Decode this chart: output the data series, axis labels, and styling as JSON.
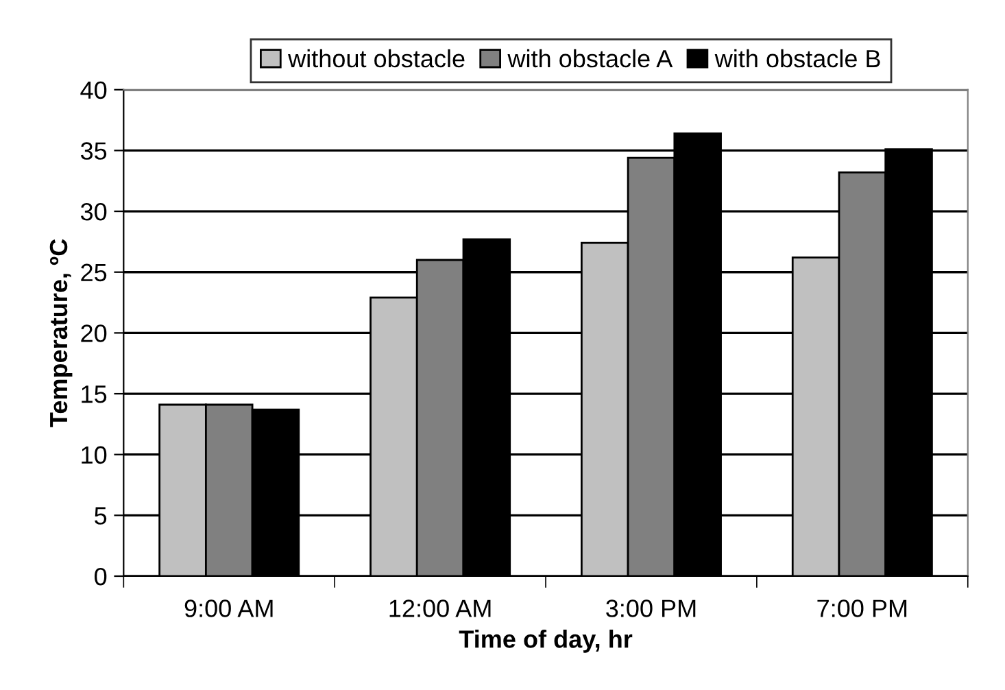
{
  "chart_data": {
    "type": "bar",
    "xlabel": "Time of day, hr",
    "ylabel": "Temperature, ºC",
    "categories": [
      "9:00 AM",
      "12:00 AM",
      "3:00 PM",
      "7:00 PM"
    ],
    "series": [
      {
        "name": "without obstacle",
        "color": "#c0c0c0",
        "values": [
          14.1,
          22.9,
          27.4,
          26.2
        ]
      },
      {
        "name": "with obstacle A",
        "color": "#808080",
        "values": [
          14.1,
          26.0,
          34.4,
          33.2
        ]
      },
      {
        "name": "with obstacle B",
        "color": "#000000",
        "values": [
          13.7,
          27.7,
          36.4,
          35.1
        ]
      }
    ],
    "ylim": [
      0,
      40
    ],
    "yticks": [
      0,
      5,
      10,
      15,
      20,
      25,
      30,
      35,
      40
    ],
    "grid": "y",
    "legend": "top"
  }
}
